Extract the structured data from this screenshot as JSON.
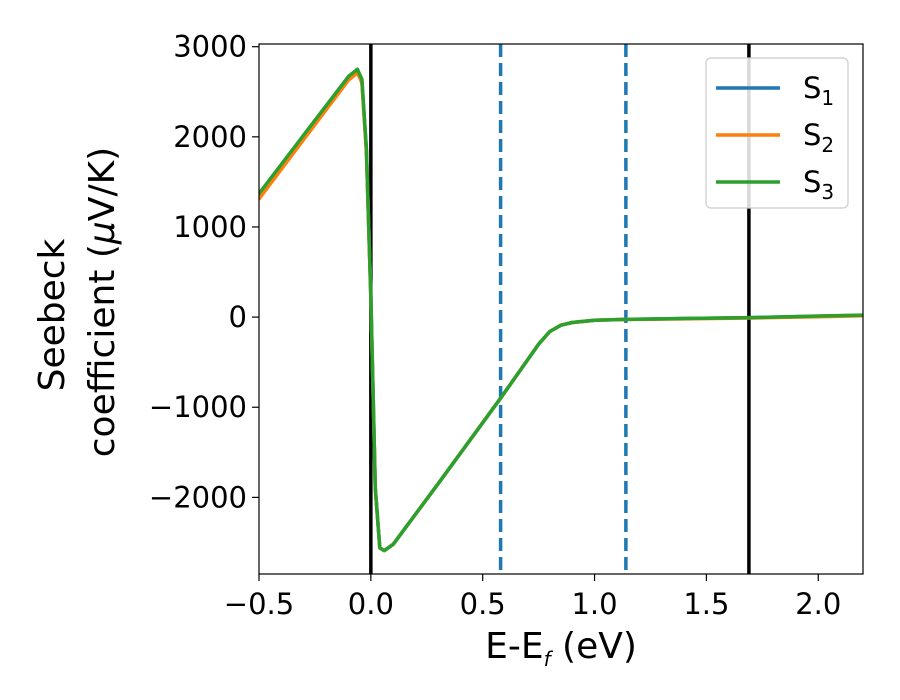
{
  "chart_data": {
    "type": "line",
    "title": "",
    "xlabel": {
      "main": "E-E",
      "sub": "f",
      "unit": " (eV)"
    },
    "ylabel": {
      "line1": "Seebeck",
      "line2_text": "coefficient  (",
      "line2_mu": "μ",
      "line2_unit": "V/K)"
    },
    "xlim": [
      -0.5,
      2.2
    ],
    "ylim": [
      -2850,
      3030
    ],
    "xticks": [
      -0.5,
      0.0,
      0.5,
      1.0,
      1.5,
      2.0
    ],
    "xtick_labels": [
      "−0.5",
      "0.0",
      "0.5",
      "1.0",
      "1.5",
      "2.0"
    ],
    "yticks": [
      -2000,
      -1000,
      0,
      1000,
      2000,
      3000
    ],
    "ytick_labels": [
      "−2000",
      "−1000",
      "0",
      "1000",
      "2000",
      "3000"
    ],
    "grid": false,
    "legend_position": "top-right",
    "series": [
      {
        "name": "S",
        "sub": "1",
        "color": "#1f77b4",
        "x": [
          -0.5,
          -0.3,
          -0.1,
          -0.06,
          -0.04,
          -0.02,
          0.0,
          0.02,
          0.04,
          0.06,
          0.1,
          0.3,
          0.58,
          0.75,
          0.8,
          0.85,
          0.9,
          1.0,
          1.14,
          1.4,
          1.7,
          2.0,
          2.2
        ],
        "y": [
          1350,
          2000,
          2650,
          2730,
          2620,
          1850,
          200,
          -1900,
          -2560,
          -2590,
          -2520,
          -1850,
          -900,
          -300,
          -160,
          -90,
          -60,
          -35,
          -25,
          -15,
          -5,
          10,
          20
        ]
      },
      {
        "name": "S",
        "sub": "2",
        "color": "#ff7f0e",
        "x": [
          -0.5,
          -0.3,
          -0.1,
          -0.06,
          -0.04,
          -0.02,
          0.0,
          0.02,
          0.04,
          0.06,
          0.1,
          0.3,
          0.58,
          0.75,
          0.8,
          0.85,
          0.9,
          1.0,
          1.14,
          1.4,
          1.7,
          2.0,
          2.2
        ],
        "y": [
          1310,
          1970,
          2630,
          2710,
          2600,
          1830,
          190,
          -1900,
          -2560,
          -2590,
          -2520,
          -1850,
          -900,
          -300,
          -160,
          -90,
          -60,
          -35,
          -25,
          -20,
          -10,
          5,
          15
        ]
      },
      {
        "name": "S",
        "sub": "3",
        "color": "#2ca02c",
        "x": [
          -0.5,
          -0.3,
          -0.1,
          -0.06,
          -0.04,
          -0.02,
          0.0,
          0.02,
          0.04,
          0.06,
          0.1,
          0.3,
          0.58,
          0.75,
          0.8,
          0.85,
          0.9,
          1.0,
          1.14,
          1.4,
          1.7,
          2.0,
          2.2
        ],
        "y": [
          1370,
          2020,
          2670,
          2750,
          2640,
          1870,
          210,
          -1900,
          -2560,
          -2590,
          -2520,
          -1850,
          -900,
          -300,
          -160,
          -90,
          -60,
          -35,
          -25,
          -15,
          -5,
          12,
          22
        ]
      }
    ],
    "vlines": [
      {
        "x": 0.0,
        "style": "solid",
        "color": "#000000"
      },
      {
        "x": 1.69,
        "style": "solid",
        "color": "#000000"
      },
      {
        "x": 0.58,
        "style": "dashed",
        "color": "#1f77b4"
      },
      {
        "x": 1.14,
        "style": "dashed",
        "color": "#1f77b4"
      }
    ]
  }
}
